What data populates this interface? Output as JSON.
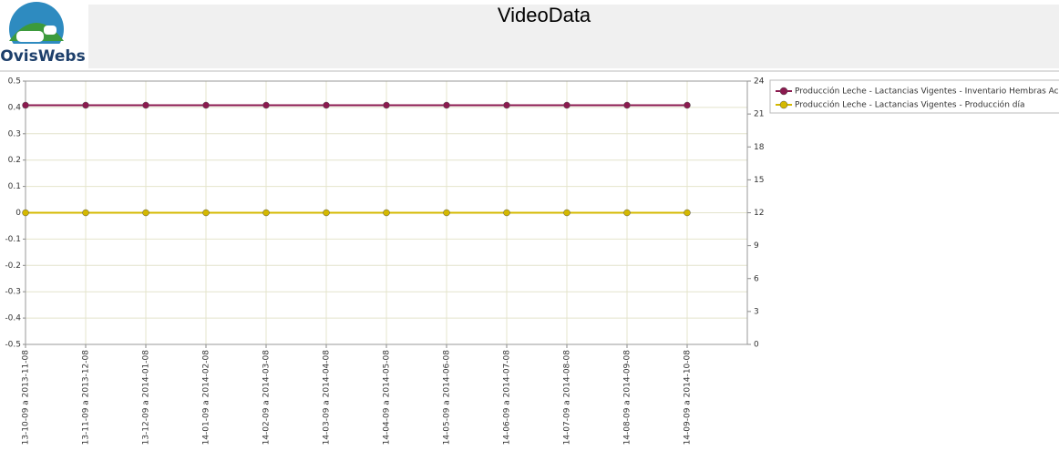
{
  "header": {
    "title": "VideoData",
    "logo_text": "OvisWebs"
  },
  "chart_data": {
    "type": "line",
    "categories": [
      "13-10-09 a 2013-11-08",
      "13-11-09 a 2013-12-08",
      "13-12-09 a 2014-01-08",
      "14-01-09 a 2014-02-08",
      "14-02-09 a 2014-03-08",
      "14-03-09 a 2014-04-08",
      "14-04-09 a 2014-05-08",
      "14-05-09 a 2014-06-08",
      "14-06-09 a 2014-07-08",
      "14-07-09 a 2014-08-08",
      "14-08-09 a 2014-09-08",
      "14-09-09 a 2014-10-08"
    ],
    "series": [
      {
        "name": "Producción Leche - Lactancias Vigentes - Inventario Hembras Ac",
        "color": "#8b1a4f",
        "axis": "y2",
        "values": [
          21.8,
          21.8,
          21.8,
          21.8,
          21.8,
          21.8,
          21.8,
          21.8,
          21.8,
          21.8,
          21.8,
          21.8
        ]
      },
      {
        "name": "Producción Leche - Lactancias Vigentes - Producción día",
        "color": "#d4b800",
        "values": [
          0,
          0,
          0,
          0,
          0,
          0,
          0,
          0,
          0,
          0,
          0,
          0
        ]
      }
    ],
    "ylim": [
      -0.5,
      0.5
    ],
    "yticks": [
      -0.5,
      -0.4,
      -0.3,
      -0.2,
      -0.1,
      0,
      0.1,
      0.2,
      0.3,
      0.4,
      0.5
    ],
    "y2lim": [
      0,
      24
    ],
    "y2ticks": [
      0,
      3,
      6,
      9,
      12,
      15,
      18,
      21,
      24
    ],
    "grid": true,
    "legend": "right"
  }
}
